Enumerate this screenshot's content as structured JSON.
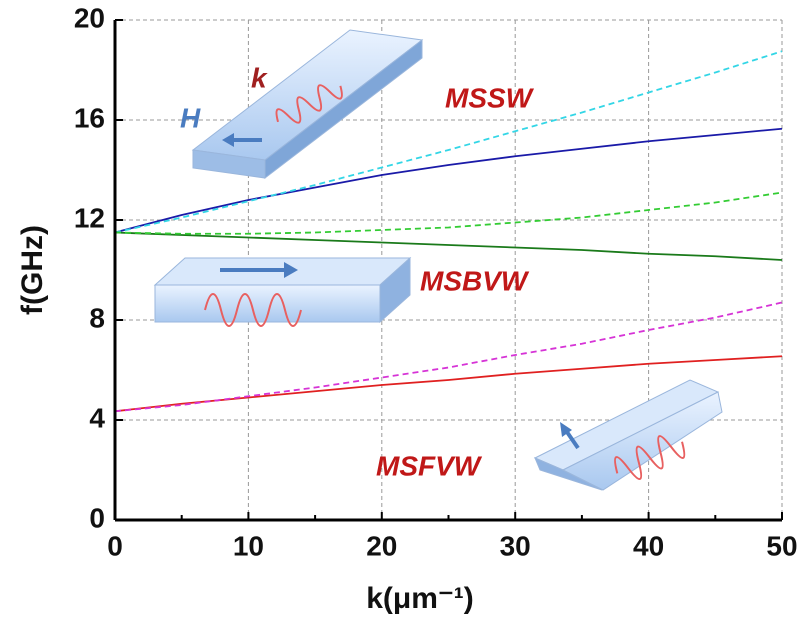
{
  "chart_data": {
    "type": "line",
    "x_label": "k(μm⁻¹)",
    "y_label": "f(GHz)",
    "x": [
      0,
      5,
      10,
      15,
      20,
      25,
      30,
      35,
      40,
      45,
      50
    ],
    "series": [
      {
        "color": "#1a1aa8",
        "dashed": false,
        "values": [
          11.5,
          12.2,
          12.8,
          13.3,
          13.8,
          14.2,
          14.55,
          14.85,
          15.15,
          15.4,
          15.65
        ]
      },
      {
        "color": "#33d6e6",
        "dashed": true,
        "values": [
          11.5,
          12.1,
          12.75,
          13.4,
          14.1,
          14.8,
          15.55,
          16.3,
          17.1,
          17.9,
          18.75
        ]
      },
      {
        "color": "#1a7a1a",
        "dashed": false,
        "values": [
          11.5,
          11.4,
          11.3,
          11.2,
          11.1,
          11.0,
          10.9,
          10.8,
          10.65,
          10.55,
          10.4
        ]
      },
      {
        "color": "#33cc33",
        "dashed": true,
        "values": [
          11.5,
          11.45,
          11.45,
          11.5,
          11.6,
          11.7,
          11.9,
          12.1,
          12.4,
          12.7,
          13.1
        ]
      },
      {
        "color": "#e02020",
        "dashed": false,
        "values": [
          4.35,
          4.65,
          4.9,
          5.15,
          5.4,
          5.6,
          5.85,
          6.05,
          6.25,
          6.4,
          6.55
        ]
      },
      {
        "color": "#d633d6",
        "dashed": true,
        "values": [
          4.35,
          4.6,
          4.95,
          5.3,
          5.7,
          6.1,
          6.6,
          7.05,
          7.6,
          8.1,
          8.7
        ]
      }
    ],
    "annotations": [
      "MSSW",
      "MSBVW",
      "MSFVW",
      "H",
      "k"
    ],
    "xlim": [
      0,
      50
    ],
    "ylim": [
      0,
      20
    ],
    "xticks": [
      0,
      10,
      20,
      30,
      40,
      50
    ],
    "xminor_ticks": [
      5,
      15,
      25,
      35,
      45
    ],
    "yticks": [
      0,
      4,
      8,
      12,
      16,
      20
    ],
    "grid": true
  }
}
